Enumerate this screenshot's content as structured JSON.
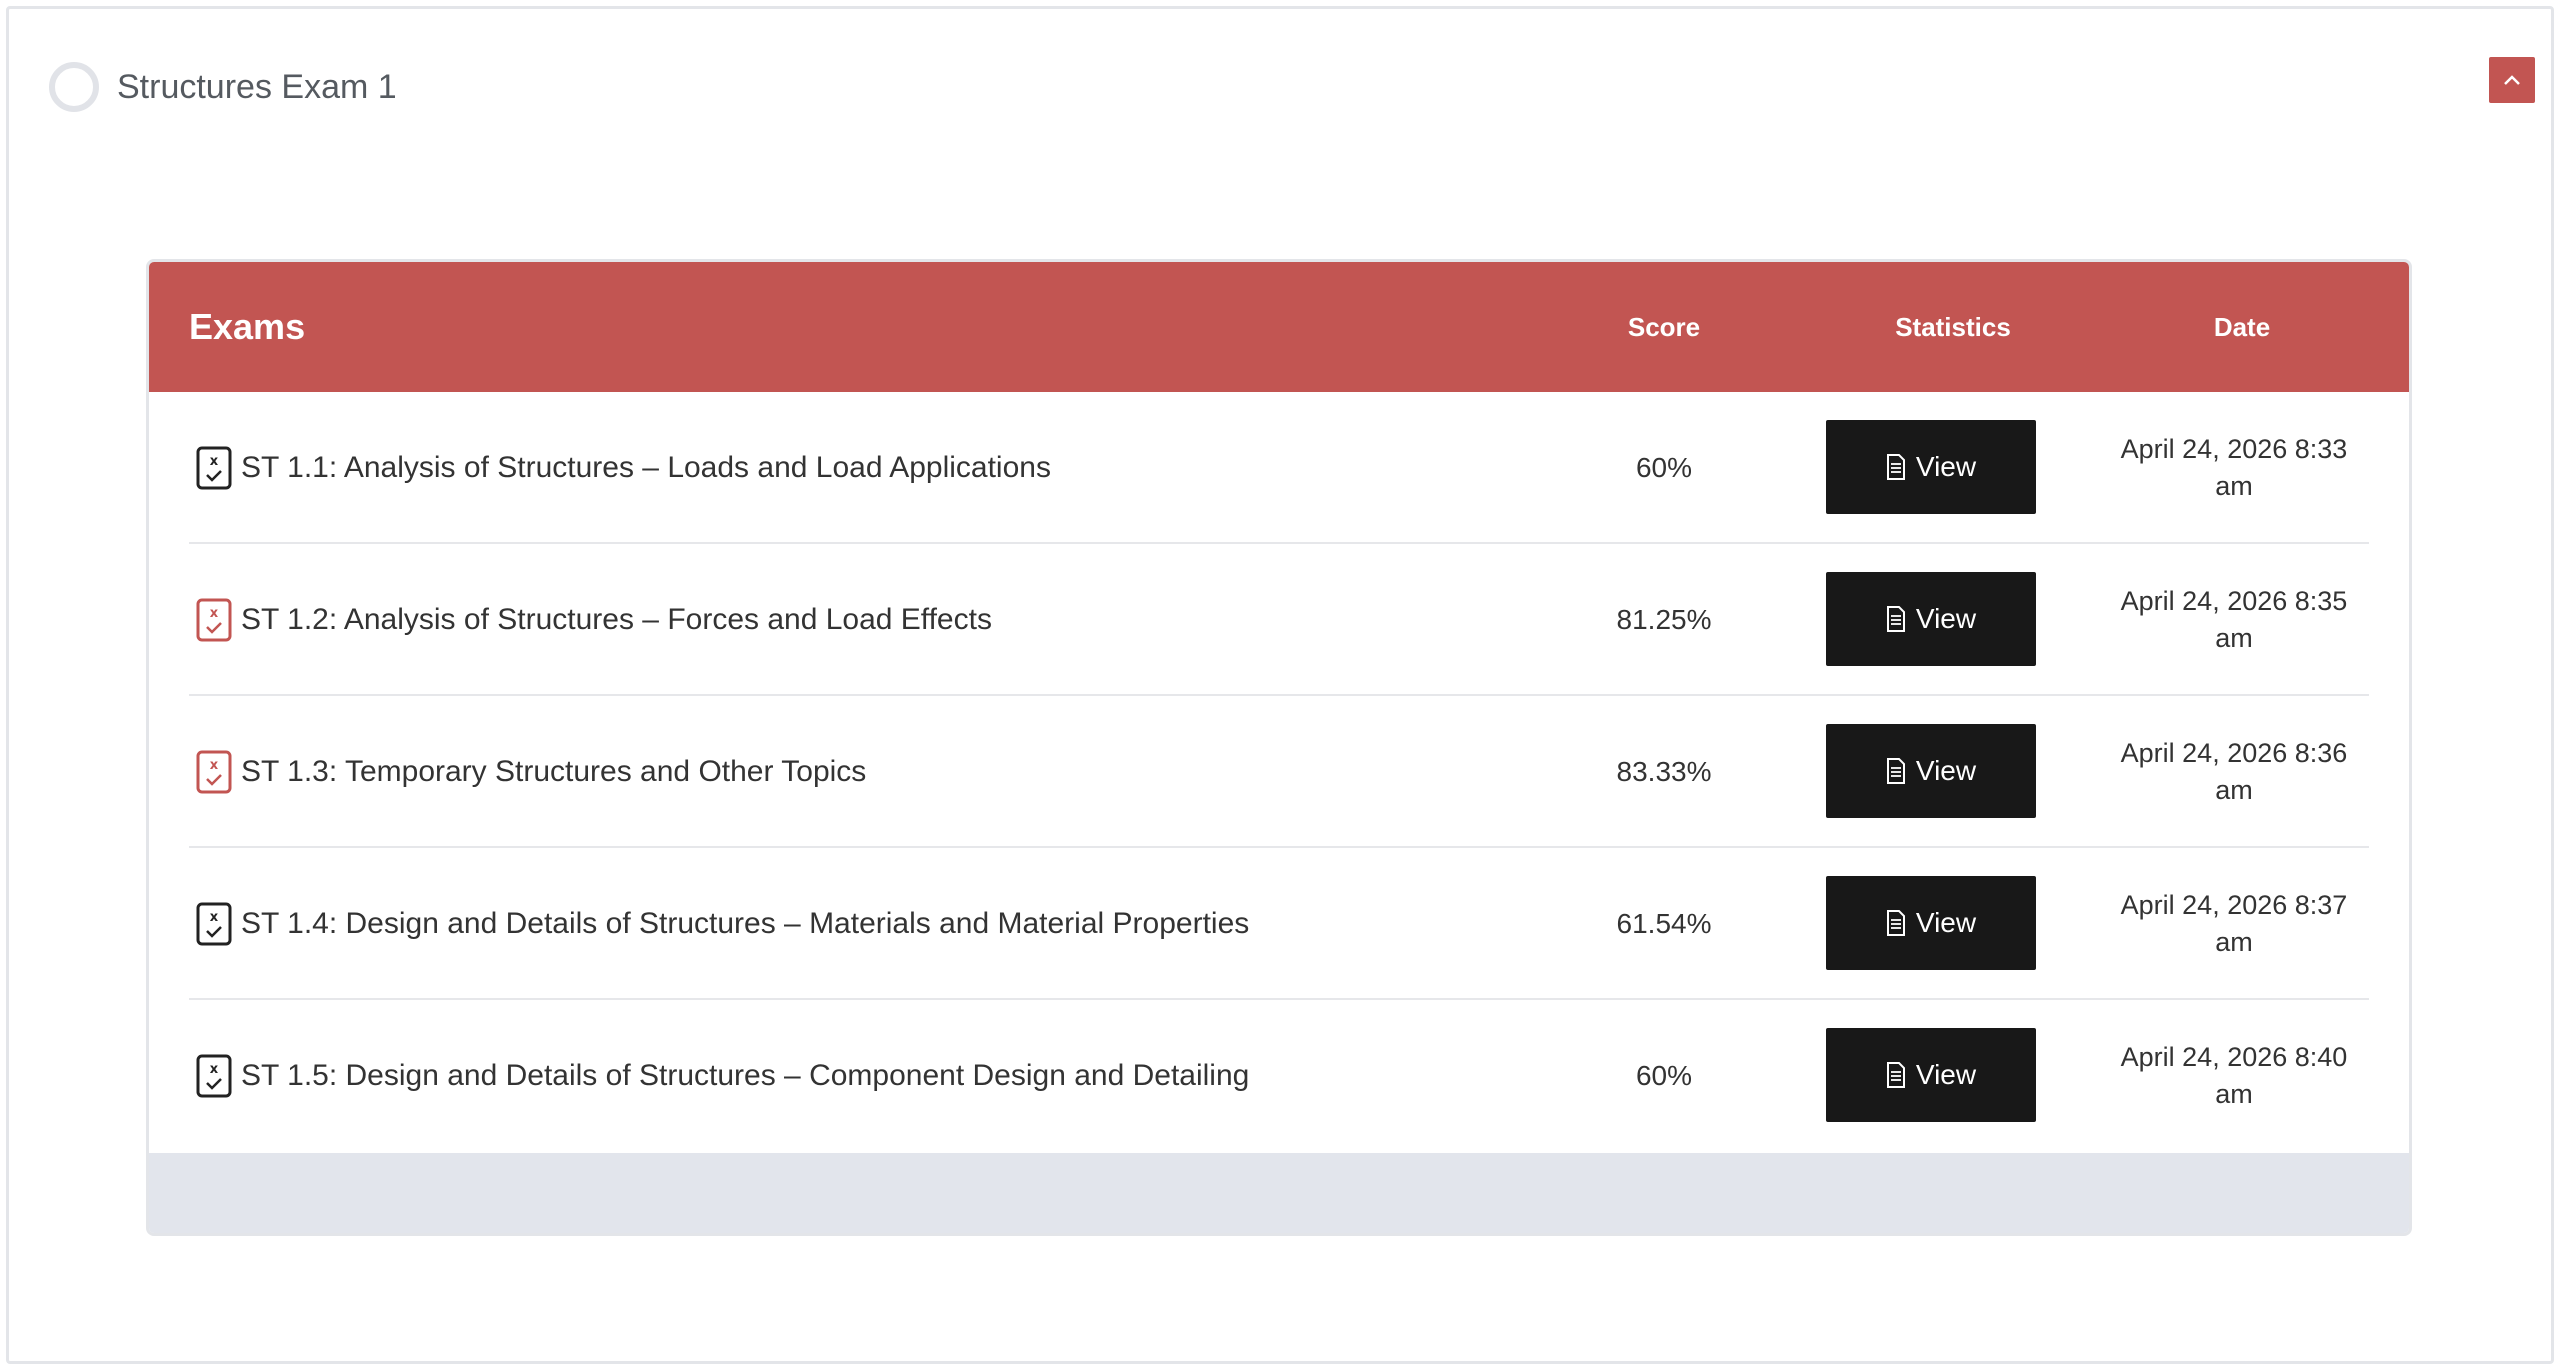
{
  "section": {
    "title": "Structures Exam 1"
  },
  "table": {
    "headers": {
      "exams": "Exams",
      "score": "Score",
      "statistics": "Statistics",
      "date": "Date"
    },
    "rows": [
      {
        "name": "ST 1.1: Analysis of Structures – Loads and Load Applications",
        "score": "60%",
        "view_label": "View",
        "date": "April 24, 2026 8:33 am",
        "status": "failed",
        "icon_color": "#222222"
      },
      {
        "name": "ST 1.2: Analysis of Structures – Forces and Load Effects",
        "score": "81.25%",
        "view_label": "View",
        "date": "April 24, 2026 8:35 am",
        "status": "passed",
        "icon_color": "#c25552"
      },
      {
        "name": "ST 1.3: Temporary Structures and Other Topics",
        "score": "83.33%",
        "view_label": "View",
        "date": "April 24, 2026 8:36 am",
        "status": "passed",
        "icon_color": "#c25552"
      },
      {
        "name": "ST 1.4: Design and Details of Structures – Materials and Material Properties",
        "score": "61.54%",
        "view_label": "View",
        "date": "April 24, 2026 8:37 am",
        "status": "failed",
        "icon_color": "#222222"
      },
      {
        "name": "ST 1.5: Design and Details of Structures – Component Design and Detailing",
        "score": "60%",
        "view_label": "View",
        "date": "April 24, 2026 8:40 am",
        "status": "failed",
        "icon_color": "#222222"
      }
    ]
  },
  "colors": {
    "accent": "#c25552",
    "button_dark": "#181818",
    "footer_bg": "#e2e5ec"
  }
}
